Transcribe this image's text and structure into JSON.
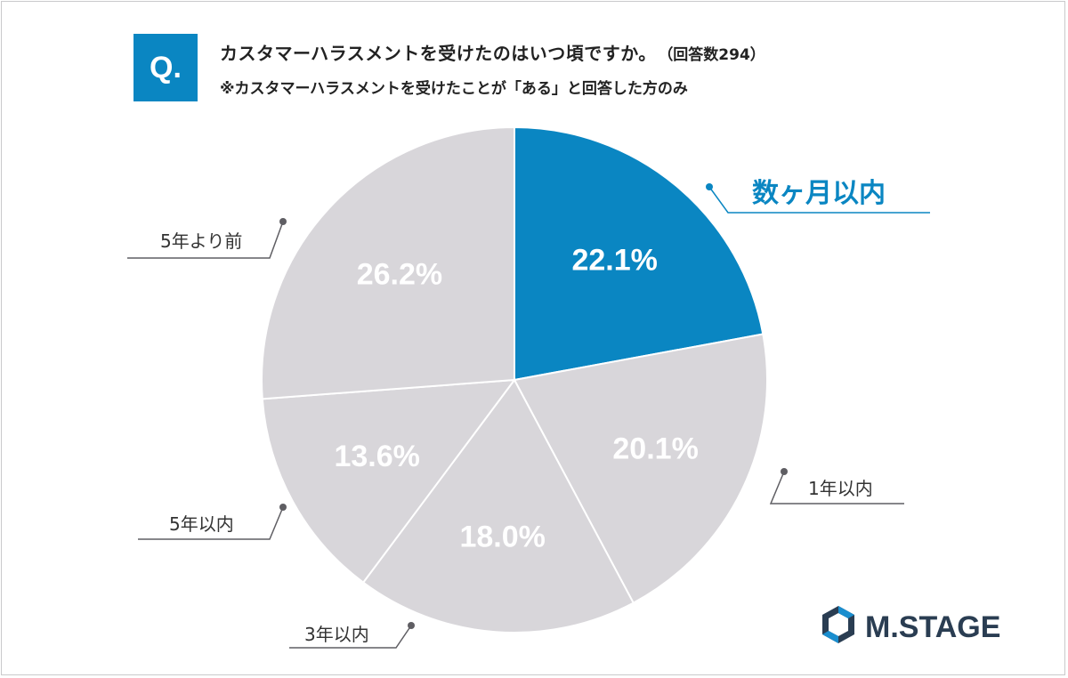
{
  "header": {
    "badge": "Q.",
    "title": "カスタマーハラスメントを受けたのはいつ頃ですか。",
    "respondents": "（回答数294）",
    "note": "※カスタマーハラスメントを受けたことが「ある」と回答した方のみ"
  },
  "logo": {
    "text": "M.STAGE",
    "icon": "hexagon-logo-icon"
  },
  "colors": {
    "highlight": "#0a86c2",
    "slice": "#d8d6da",
    "leader": "#5f5e63",
    "label_text": "#ffffff"
  },
  "chart_data": {
    "type": "pie",
    "start": "12 o'clock",
    "direction": "clockwise",
    "categories": [
      "数ヶ月以内",
      "1年以内",
      "3年以内",
      "5年以内",
      "5年より前"
    ],
    "values": [
      22.1,
      20.1,
      18.0,
      13.6,
      26.2
    ],
    "value_labels": [
      "22.1%",
      "20.1%",
      "18.0%",
      "13.6%",
      "26.2%"
    ],
    "highlighted": "数ヶ月以内",
    "total_respondents": 294
  }
}
